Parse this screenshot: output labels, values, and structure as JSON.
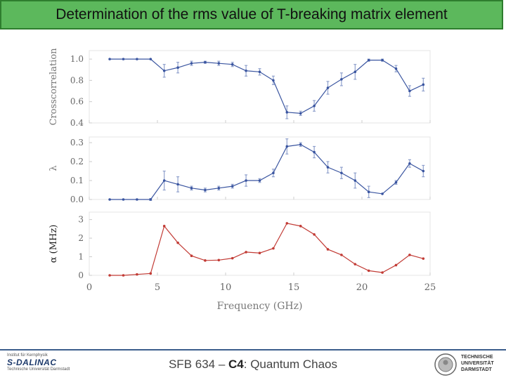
{
  "title": "Determination of the rms value of T-breaking matrix element",
  "footer": {
    "prefix": "SFB 634 – ",
    "bold": "C4",
    "suffix": ": Quantum Chaos"
  },
  "logo_left": {
    "line1": "Institut für Kernphysik",
    "name": "S-DALINAC",
    "line3": "Technische Universität Darmstadt"
  },
  "logo_right": {
    "line1": "TECHNISCHE",
    "line2": "UNIVERSITÄT",
    "line3": "DARMSTADT"
  },
  "chart_data": {
    "type": "line",
    "xlabel": "Frequency (GHz)",
    "xlim": [
      0,
      25
    ],
    "xticks": [
      0,
      5,
      10,
      15,
      20,
      25
    ],
    "panels": [
      {
        "ylabel": "Crosscorrelation",
        "ylim": [
          0.4,
          1.08
        ],
        "yticks": [
          0.4,
          0.6,
          0.8,
          1.0
        ],
        "yticklabels": [
          "0.4",
          "0.6",
          "0.8",
          "1.0"
        ],
        "color": "#3a55a0",
        "errcolor": "#8fa0cc",
        "x": [
          1.5,
          2.5,
          3.5,
          4.5,
          5.5,
          6.5,
          7.5,
          8.5,
          9.5,
          10.5,
          11.5,
          12.5,
          13.5,
          14.5,
          15.5,
          16.5,
          17.5,
          18.5,
          19.5,
          20.5,
          21.5,
          22.5,
          23.5,
          24.5
        ],
        "y": [
          1.0,
          1.0,
          1.0,
          1.0,
          0.89,
          0.92,
          0.96,
          0.97,
          0.96,
          0.95,
          0.89,
          0.88,
          0.8,
          0.5,
          0.49,
          0.56,
          0.73,
          0.81,
          0.88,
          0.99,
          0.99,
          0.91,
          0.7,
          0.76
        ],
        "err": [
          0.0,
          0.0,
          0.0,
          0.0,
          0.06,
          0.05,
          0.02,
          0.01,
          0.02,
          0.02,
          0.05,
          0.03,
          0.04,
          0.06,
          0.02,
          0.05,
          0.06,
          0.06,
          0.07,
          0.01,
          0.01,
          0.03,
          0.05,
          0.06
        ]
      },
      {
        "ylabel": "λ",
        "ylim": [
          0,
          0.33
        ],
        "yticks": [
          0,
          0.1,
          0.2,
          0.3
        ],
        "yticklabels": [
          "0.0",
          "0.1",
          "0.2",
          "0.3"
        ],
        "color": "#3a55a0",
        "errcolor": "#8fa0cc",
        "x": [
          1.5,
          2.5,
          3.5,
          4.5,
          5.5,
          6.5,
          7.5,
          8.5,
          9.5,
          10.5,
          11.5,
          12.5,
          13.5,
          14.5,
          15.5,
          16.5,
          17.5,
          18.5,
          19.5,
          20.5,
          21.5,
          22.5,
          23.5,
          24.5
        ],
        "y": [
          0.0,
          0.0,
          0.0,
          0.0,
          0.1,
          0.08,
          0.06,
          0.05,
          0.06,
          0.07,
          0.1,
          0.1,
          0.14,
          0.28,
          0.29,
          0.25,
          0.17,
          0.14,
          0.1,
          0.04,
          0.03,
          0.09,
          0.19,
          0.15
        ],
        "err": [
          0.0,
          0.0,
          0.0,
          0.005,
          0.05,
          0.04,
          0.01,
          0.01,
          0.01,
          0.01,
          0.03,
          0.01,
          0.02,
          0.04,
          0.01,
          0.03,
          0.03,
          0.03,
          0.04,
          0.03,
          0.0,
          0.01,
          0.02,
          0.03
        ]
      },
      {
        "ylabel": "α (MHz)",
        "ylim": [
          0,
          3.4
        ],
        "yticks": [
          0,
          1,
          2,
          3
        ],
        "yticklabels": [
          "0",
          "1",
          "2",
          "3"
        ],
        "color": "#c23b35",
        "errcolor": "#e6a09c",
        "x": [
          1.5,
          2.5,
          3.5,
          4.5,
          5.5,
          6.5,
          7.5,
          8.5,
          9.5,
          10.5,
          11.5,
          12.5,
          13.5,
          14.5,
          15.5,
          16.5,
          17.5,
          18.5,
          19.5,
          20.5,
          21.5,
          22.5,
          23.5,
          24.5
        ],
        "y": [
          0.0,
          0.0,
          0.05,
          0.1,
          2.65,
          1.75,
          1.05,
          0.8,
          0.82,
          0.92,
          1.25,
          1.2,
          1.45,
          2.8,
          2.65,
          2.2,
          1.4,
          1.1,
          0.6,
          0.25,
          0.15,
          0.55,
          1.1,
          0.9
        ]
      }
    ]
  }
}
